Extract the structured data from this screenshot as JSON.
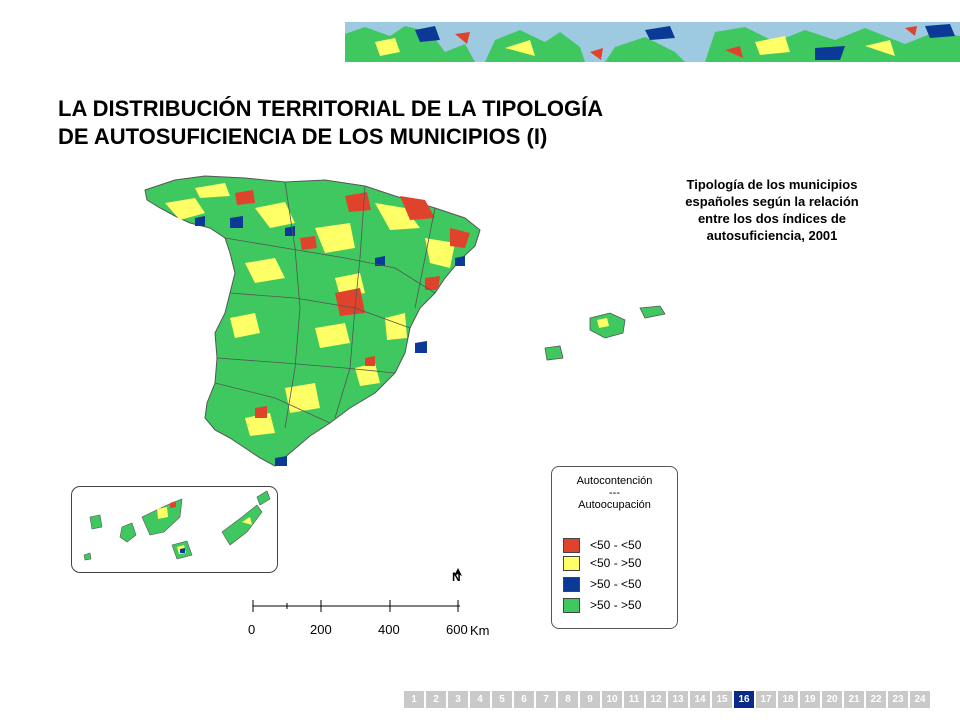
{
  "title": {
    "line1": "LA DISTRIBUCIÓN TERRITORIAL DE LA TIPOLOGÍA",
    "line2": "DE AUTOSUFICIENCIA DE LOS MUNICIPIOS (I)"
  },
  "caption": {
    "line1": "Tipología de los municipios",
    "line2": "españoles según la relación",
    "line3": "entre los dos índices de",
    "line4": "autosuficiencia, 2001"
  },
  "legend": {
    "header_line1": "Autocontención",
    "header_line2": "---",
    "header_line3": "Autoocupación",
    "items": [
      {
        "label": "<50 - <50",
        "color": "#e0432b"
      },
      {
        "label": "<50 - >50",
        "color": "#ffff66"
      },
      {
        "label": ">50 - <50",
        "color": "#0a3a96"
      },
      {
        "label": ">50 - >50",
        "color": "#3ec85f"
      }
    ]
  },
  "north_arrow": {
    "label": "N"
  },
  "scale": {
    "ticks": [
      "0",
      "200",
      "400",
      "600"
    ],
    "unit": "Km"
  },
  "pager": {
    "pages": [
      "1",
      "2",
      "3",
      "4",
      "5",
      "6",
      "7",
      "8",
      "9",
      "10",
      "11",
      "12",
      "13",
      "14",
      "15",
      "16",
      "17",
      "18",
      "19",
      "20",
      "21",
      "22",
      "23",
      "24"
    ],
    "current": "16"
  },
  "colors": {
    "land": "#3ec85f",
    "water_banner": "#9ecae1",
    "border": "#555555"
  }
}
